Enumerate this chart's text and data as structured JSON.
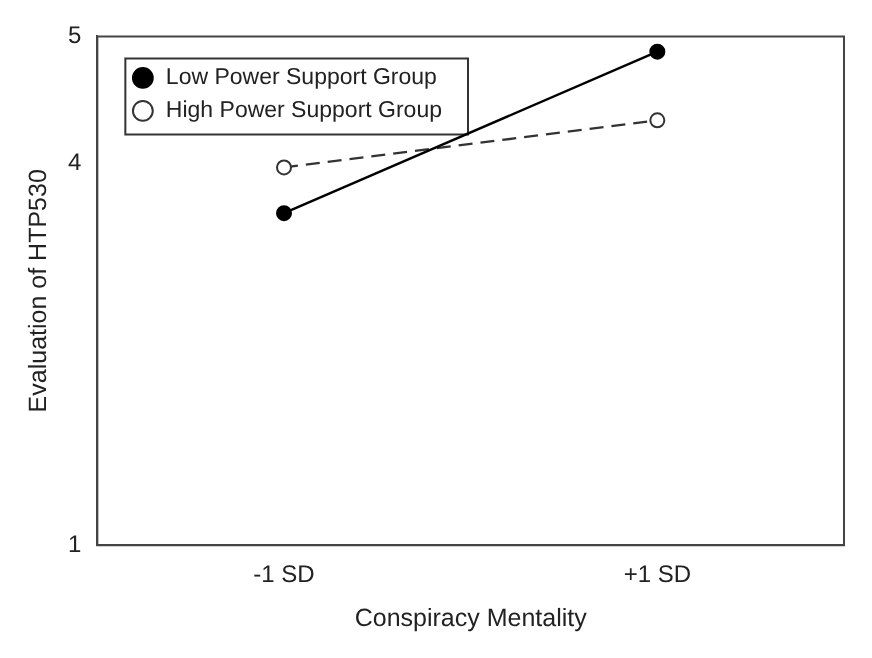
{
  "chart_data": {
    "type": "line",
    "xlabel": "Conspiracy Mentality",
    "ylabel": "Evaluation of HTP530",
    "categories": [
      "-1 SD",
      "+1 SD"
    ],
    "series": [
      {
        "name": "Low Power Support Group",
        "color": "#000000",
        "values": [
          3.61,
          4.88
        ],
        "line_style": "solid",
        "marker": "circle"
      },
      {
        "name": "High Power Support Group",
        "color": "#333333",
        "values": [
          3.97,
          4.34
        ],
        "line_style": "dashed",
        "marker": "circle"
      }
    ],
    "ylim": [
      1,
      5
    ],
    "yticks": [
      1,
      4,
      5
    ],
    "grid": false,
    "legend": "top left"
  }
}
